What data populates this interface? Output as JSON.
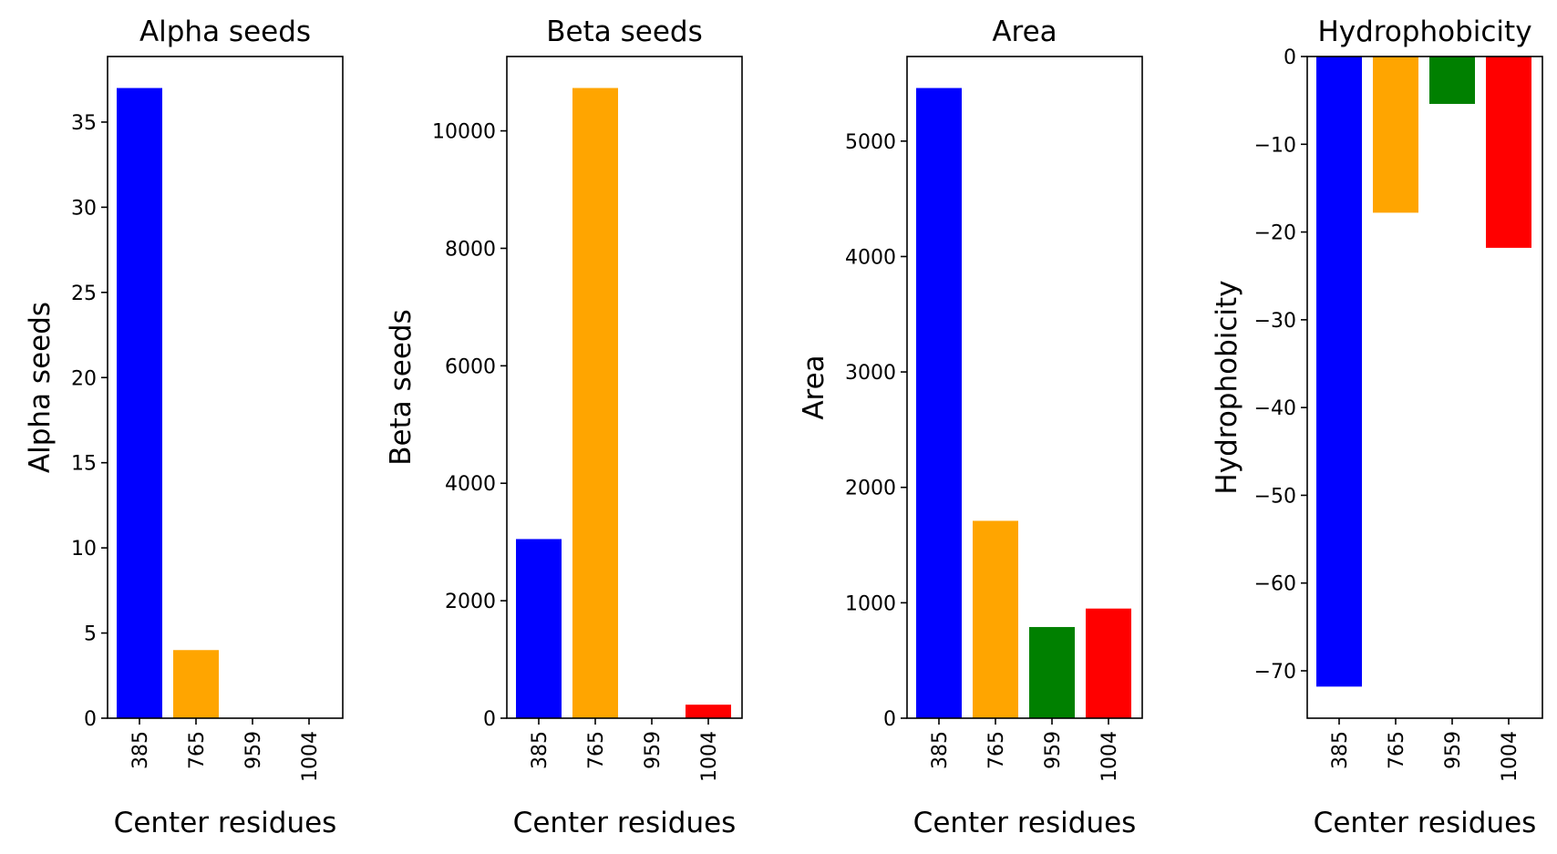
{
  "chart_data": [
    {
      "type": "bar",
      "title": "Alpha seeds",
      "xlabel": "Center residues",
      "ylabel": "Alpha seeds",
      "categories": [
        "385",
        "765",
        "959",
        "1004"
      ],
      "values": [
        37,
        4,
        0,
        0
      ],
      "colors": [
        "#0000ff",
        "#ffa500",
        "#008000",
        "#ff0000"
      ],
      "ylim": [
        0,
        38.85
      ],
      "yticks": [
        0,
        5,
        10,
        15,
        20,
        25,
        30,
        35
      ],
      "ytick_labels": [
        "0",
        "5",
        "10",
        "15",
        "20",
        "25",
        "30",
        "35"
      ],
      "grid": false
    },
    {
      "type": "bar",
      "title": "Beta seeds",
      "xlabel": "Center residues",
      "ylabel": "Beta seeds",
      "categories": [
        "385",
        "765",
        "959",
        "1004"
      ],
      "values": [
        3050,
        10730,
        0,
        230
      ],
      "colors": [
        "#0000ff",
        "#ffa500",
        "#008000",
        "#ff0000"
      ],
      "ylim": [
        0,
        11266
      ],
      "yticks": [
        0,
        2000,
        4000,
        6000,
        8000,
        10000
      ],
      "ytick_labels": [
        "0",
        "2000",
        "4000",
        "6000",
        "8000",
        "10000"
      ],
      "grid": false
    },
    {
      "type": "bar",
      "title": "Area",
      "xlabel": "Center residues",
      "ylabel": "Area",
      "categories": [
        "385",
        "765",
        "959",
        "1004"
      ],
      "values": [
        5460,
        1710,
        790,
        950
      ],
      "colors": [
        "#0000ff",
        "#ffa500",
        "#008000",
        "#ff0000"
      ],
      "ylim": [
        0,
        5733
      ],
      "yticks": [
        0,
        1000,
        2000,
        3000,
        4000,
        5000
      ],
      "ytick_labels": [
        "0",
        "1000",
        "2000",
        "3000",
        "4000",
        "5000"
      ],
      "grid": false
    },
    {
      "type": "bar",
      "title": "Hydrophobicity",
      "xlabel": "Center residues",
      "ylabel": "Hydrophobicity",
      "categories": [
        "385",
        "765",
        "959",
        "1004"
      ],
      "values": [
        -71.8,
        -17.8,
        -5.4,
        -21.8
      ],
      "colors": [
        "#0000ff",
        "#ffa500",
        "#008000",
        "#ff0000"
      ],
      "ylim": [
        -75.4,
        0
      ],
      "yticks": [
        0,
        -10,
        -20,
        -30,
        -40,
        -50,
        -60,
        -70
      ],
      "ytick_labels": [
        "0",
        "−10",
        "−20",
        "−30",
        "−40",
        "−50",
        "−60",
        "−70"
      ],
      "grid": false
    }
  ]
}
